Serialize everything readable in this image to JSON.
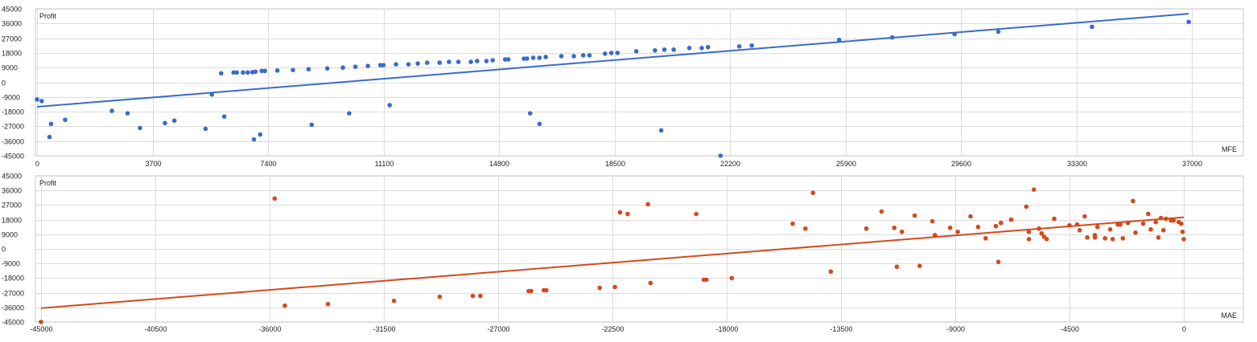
{
  "chart_data": [
    {
      "type": "scatter",
      "ylabel": "Profit",
      "xlabel": "MFE",
      "xlim": [
        0,
        38000
      ],
      "ylim": [
        -45000,
        45000
      ],
      "x_ticks": [
        "0",
        "3700",
        "7400",
        "11100",
        "14800",
        "18500",
        "22200",
        "25900",
        "29600",
        "33300",
        "37000"
      ],
      "x_tick_values": [
        0,
        3700,
        7400,
        11100,
        14800,
        18500,
        22200,
        25900,
        29600,
        33300,
        37000
      ],
      "y_ticks": [
        "45000",
        "36000",
        "27000",
        "18000",
        "9000",
        "0",
        "-9000",
        "-18000",
        "-27000",
        "-36000",
        "-45000"
      ],
      "y_tick_values": [
        45000,
        36000,
        27000,
        18000,
        9000,
        0,
        -9000,
        -18000,
        -27000,
        -36000,
        -45000
      ],
      "color": "#3a6cc8",
      "trendline": {
        "x": [
          0,
          36900
        ],
        "y": [
          -15000,
          42000
        ]
      },
      "points": [
        [
          0,
          -10500
        ],
        [
          150,
          -11500
        ],
        [
          450,
          -25500
        ],
        [
          400,
          -33500
        ],
        [
          900,
          -23000
        ],
        [
          2400,
          -17500
        ],
        [
          2900,
          -19000
        ],
        [
          3300,
          -28000
        ],
        [
          4100,
          -25000
        ],
        [
          4400,
          -23500
        ],
        [
          5400,
          -28500
        ],
        [
          5600,
          -7500
        ],
        [
          5900,
          5500
        ],
        [
          6000,
          -21000
        ],
        [
          6300,
          6000
        ],
        [
          6400,
          6000
        ],
        [
          6600,
          6000
        ],
        [
          6750,
          6000
        ],
        [
          6900,
          6200
        ],
        [
          6950,
          -35000
        ],
        [
          7000,
          6500
        ],
        [
          7150,
          -32000
        ],
        [
          7200,
          7000
        ],
        [
          7300,
          7000
        ],
        [
          7700,
          7200
        ],
        [
          8200,
          7500
        ],
        [
          8700,
          8000
        ],
        [
          8800,
          -26000
        ],
        [
          9300,
          8500
        ],
        [
          9800,
          9000
        ],
        [
          10000,
          -19000
        ],
        [
          10200,
          9500
        ],
        [
          10600,
          10000
        ],
        [
          11000,
          10500
        ],
        [
          11100,
          10500
        ],
        [
          11300,
          -14000
        ],
        [
          11500,
          11000
        ],
        [
          11900,
          11000
        ],
        [
          12200,
          11500
        ],
        [
          12500,
          12000
        ],
        [
          12900,
          12000
        ],
        [
          13200,
          12500
        ],
        [
          13500,
          12500
        ],
        [
          13900,
          12500
        ],
        [
          14100,
          13000
        ],
        [
          14400,
          13000
        ],
        [
          14600,
          13500
        ],
        [
          15000,
          14000
        ],
        [
          15100,
          14000
        ],
        [
          15600,
          14500
        ],
        [
          15700,
          14500
        ],
        [
          15900,
          15000
        ],
        [
          16100,
          15000
        ],
        [
          16300,
          15500
        ],
        [
          15800,
          -19000
        ],
        [
          16100,
          -25500
        ],
        [
          16800,
          16000
        ],
        [
          17200,
          16000
        ],
        [
          17500,
          16500
        ],
        [
          17700,
          16500
        ],
        [
          18200,
          17500
        ],
        [
          18400,
          18000
        ],
        [
          18600,
          18000
        ],
        [
          19200,
          19000
        ],
        [
          19800,
          19500
        ],
        [
          20000,
          -29500
        ],
        [
          20100,
          20000
        ],
        [
          20400,
          20000
        ],
        [
          20900,
          21000
        ],
        [
          21300,
          21000
        ],
        [
          21500,
          21500
        ],
        [
          21900,
          -45000
        ],
        [
          22500,
          22000
        ],
        [
          22900,
          22500
        ],
        [
          25700,
          26000
        ],
        [
          27400,
          27500
        ],
        [
          29400,
          29500
        ],
        [
          30800,
          31000
        ],
        [
          33800,
          34000
        ],
        [
          36900,
          37000
        ]
      ]
    },
    {
      "type": "scatter",
      "ylabel": "Profit",
      "xlabel": "MAE",
      "xlim": [
        -45500,
        0
      ],
      "ylim": [
        -45000,
        45000
      ],
      "x_ticks": [
        "-45000",
        "-40500",
        "-36000",
        "-31500",
        "-27000",
        "-22500",
        "-18000",
        "-13500",
        "-9000",
        "-4500",
        "0"
      ],
      "x_tick_values": [
        -45000,
        -40500,
        -36000,
        -31500,
        -27000,
        -22500,
        -18000,
        -13500,
        -9000,
        -4500,
        0
      ],
      "y_ticks": [
        "45000",
        "36000",
        "27000",
        "18000",
        "9000",
        "0",
        "-9000",
        "-18000",
        "-27000",
        "-36000",
        "-45000"
      ],
      "y_tick_values": [
        45000,
        36000,
        27000,
        18000,
        9000,
        0,
        -9000,
        -18000,
        -27000,
        -36000,
        -45000
      ],
      "color": "#d4491f",
      "trendline": {
        "x": [
          -45000,
          0
        ],
        "y": [
          -36500,
          19500
        ]
      },
      "points": [
        [
          -45000,
          -45000
        ],
        [
          -35800,
          31000
        ],
        [
          -35400,
          -35000
        ],
        [
          -33700,
          -34000
        ],
        [
          -31100,
          -32000
        ],
        [
          -29300,
          -29500
        ],
        [
          -28000,
          -29000
        ],
        [
          -27700,
          -29000
        ],
        [
          -25800,
          -26000
        ],
        [
          -25700,
          -26000
        ],
        [
          -25200,
          -25500
        ],
        [
          -25100,
          -25500
        ],
        [
          -23000,
          -24000
        ],
        [
          -22400,
          -23500
        ],
        [
          -22200,
          22500
        ],
        [
          -21900,
          21500
        ],
        [
          -21100,
          27500
        ],
        [
          -21000,
          -21000
        ],
        [
          -19200,
          21500
        ],
        [
          -18900,
          -19000
        ],
        [
          -18800,
          -19000
        ],
        [
          -17800,
          -18000
        ],
        [
          -15400,
          15500
        ],
        [
          -14900,
          12500
        ],
        [
          -14600,
          34500
        ],
        [
          -13900,
          -14000
        ],
        [
          -12500,
          12500
        ],
        [
          -11900,
          23000
        ],
        [
          -11400,
          13000
        ],
        [
          -11100,
          10500
        ],
        [
          -11300,
          -11000
        ],
        [
          -10600,
          20500
        ],
        [
          -10400,
          -10500
        ],
        [
          -9900,
          17000
        ],
        [
          -9800,
          8500
        ],
        [
          -9200,
          13000
        ],
        [
          -8900,
          10500
        ],
        [
          -8400,
          20000
        ],
        [
          -8100,
          13500
        ],
        [
          -7800,
          6500
        ],
        [
          -7400,
          14000
        ],
        [
          -7200,
          16000
        ],
        [
          -7300,
          -8000
        ],
        [
          -6800,
          18000
        ],
        [
          -6200,
          26000
        ],
        [
          -6100,
          10500
        ],
        [
          -6100,
          6000
        ],
        [
          -5900,
          36500
        ],
        [
          -5700,
          12500
        ],
        [
          -5600,
          9500
        ],
        [
          -5500,
          7500
        ],
        [
          -5400,
          6000
        ],
        [
          -5100,
          18500
        ],
        [
          -4500,
          14500
        ],
        [
          -4200,
          15000
        ],
        [
          -4100,
          11500
        ],
        [
          -3900,
          20000
        ],
        [
          -3800,
          7000
        ],
        [
          -3500,
          8500
        ],
        [
          -3500,
          7000
        ],
        [
          -3400,
          13500
        ],
        [
          -3100,
          6500
        ],
        [
          -2900,
          12000
        ],
        [
          -2800,
          6000
        ],
        [
          -2600,
          15000
        ],
        [
          -2500,
          15000
        ],
        [
          -2400,
          6500
        ],
        [
          -2200,
          16000
        ],
        [
          -2000,
          29500
        ],
        [
          -1900,
          10000
        ],
        [
          -1600,
          15500
        ],
        [
          -1400,
          21500
        ],
        [
          -1300,
          12000
        ],
        [
          -1100,
          16500
        ],
        [
          -1000,
          7000
        ],
        [
          -900,
          19000
        ],
        [
          -800,
          11500
        ],
        [
          -700,
          18500
        ],
        [
          -500,
          17500
        ],
        [
          -400,
          17500
        ],
        [
          -200,
          16500
        ],
        [
          -100,
          15500
        ],
        [
          -50,
          10500
        ],
        [
          0,
          6000
        ]
      ]
    }
  ]
}
